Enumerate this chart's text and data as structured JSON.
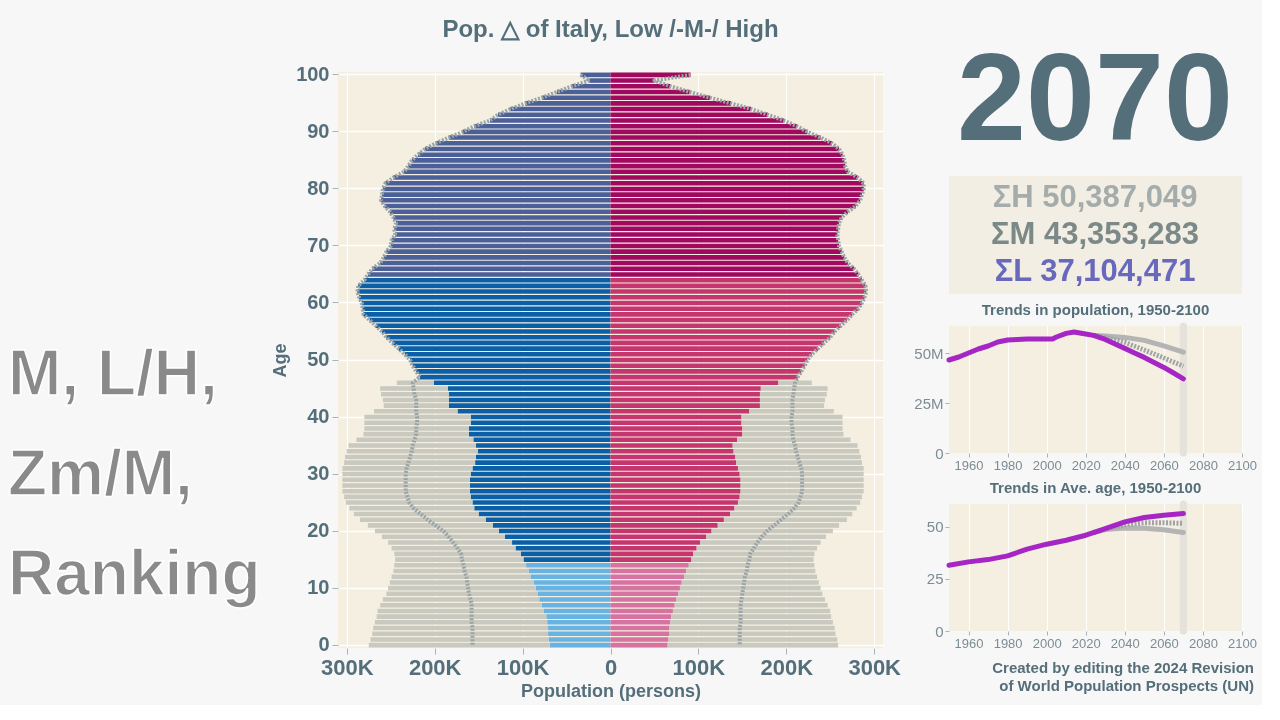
{
  "chart_data": [
    {
      "type": "bar",
      "orientation": "horizontal",
      "stacked": true,
      "title": "Pop. △ of Italy, Low /-M-/ High",
      "xlabel": "Population (persons)",
      "ylabel": "Age",
      "categories": [
        "100",
        null,
        null,
        null,
        null,
        null,
        null,
        null,
        null,
        null,
        "90",
        null,
        null,
        null,
        null,
        null,
        null,
        null,
        null,
        null,
        "80",
        null,
        null,
        null,
        null,
        null,
        null,
        null,
        null,
        null,
        "70",
        null,
        null,
        null,
        null,
        null,
        null,
        null,
        null,
        null,
        "60",
        null,
        null,
        null,
        null,
        null,
        null,
        null,
        null,
        null,
        "50",
        null,
        null,
        null,
        null,
        null,
        null,
        null,
        null,
        null,
        "40",
        null,
        null,
        null,
        null,
        null,
        null,
        null,
        null,
        null,
        "30",
        null,
        null,
        null,
        null,
        null,
        null,
        null,
        null,
        null,
        "20",
        null,
        null,
        null,
        null,
        null,
        null,
        null,
        null,
        null,
        "10",
        null,
        null,
        null,
        null,
        null,
        null,
        null,
        null,
        null,
        "0"
      ],
      "xlim": [
        -310000,
        310000
      ],
      "xticks": [
        {
          "value": -300000,
          "label": "300K"
        },
        {
          "value": -200000,
          "label": "200K"
        },
        {
          "value": -100000,
          "label": "100K"
        },
        0,
        {
          "value": 100000,
          "label": "100K"
        },
        {
          "value": 200000,
          "label": "200K"
        },
        {
          "value": 300000,
          "label": "300K"
        }
      ],
      "grid": true,
      "series": [
        {
          "type": "bar",
          "colors": [
            "#4b5f99",
            "#4b5f99",
            "#4b5f99",
            "#4b5f99",
            "#4b5f99",
            "#4b5f99",
            "#4b5f99",
            "#4b5f99",
            "#4b5f99",
            "#4b5f99",
            "#4b5f99",
            "#4b5f99",
            "#4b5f99",
            "#4b5f99",
            "#4b5f99",
            "#4b5f99",
            "#4b5f99",
            "#4b5f99",
            "#4b5f99",
            "#4b5f99",
            "#4b5f99",
            "#4b5f99",
            "#4b5f99",
            "#4b5f99",
            "#4b5f99",
            "#4b5f99",
            "#4b5f99",
            "#4b5f99",
            "#4b5f99",
            "#4b5f99",
            "#4b5f99",
            "#4b5f99",
            "#4b5f99",
            "#4b5f99",
            "#4b5f99",
            "#4b5f99",
            "#0b5fa7",
            "#0b5fa7",
            "#0b5fa7",
            "#0b5fa7",
            "#0b5fa7",
            "#0b5fa7",
            "#0b5fa7",
            "#0b5fa7",
            "#0b5fa7",
            "#0b5fa7",
            "#0b5fa7",
            "#0b5fa7",
            "#0b5fa7",
            "#0b5fa7",
            "#0b5fa7",
            "#0b5fa7",
            "#0b5fa7",
            "#0b5fa7",
            "#0b5fa7",
            "#0b5fa7",
            "#0b5fa7",
            "#0b5fa7",
            "#0b5fa7",
            "#0b5fa7",
            "#0b5fa7",
            "#0b5fa7",
            "#0b5fa7",
            "#0b5fa7",
            "#0b5fa7",
            "#0b5fa7",
            "#0b5fa7",
            "#0b5fa7",
            "#0b5fa7",
            "#0b5fa7",
            "#0b5fa7",
            "#0b5fa7",
            "#0b5fa7",
            "#0b5fa7",
            "#0b5fa7",
            "#0b5fa7",
            "#0b5fa7",
            "#0b5fa7",
            "#0b5fa7",
            "#0b5fa7",
            "#0b5fa7",
            "#0b5fa7",
            "#0b5fa7",
            "#0b5fa7",
            "#0b5fa7",
            "#0b5fa7",
            "#69b3e3",
            "#69b3e3",
            "#69b3e3",
            "#69b3e3",
            "#69b3e3",
            "#69b3e3",
            "#69b3e3",
            "#69b3e3",
            "#69b3e3",
            "#69b3e3",
            "#69b3e3",
            "#69b3e3",
            "#69b3e3",
            "#69b3e3",
            "#69b3e3"
          ],
          "values": [
            -34000,
            -24000,
            -44000,
            -61000,
            -78000,
            -97000,
            -114000,
            -128000,
            -137000,
            -155000,
            -168000,
            -184000,
            -199000,
            -211000,
            -219000,
            -226000,
            -230000,
            -235000,
            -247000,
            -256000,
            -259000,
            -260000,
            -261000,
            -257000,
            -251000,
            -247000,
            -244000,
            -246000,
            -245000,
            -249000,
            -250000,
            -255000,
            -258000,
            -262000,
            -271000,
            -276000,
            -280000,
            -287000,
            -288000,
            -286000,
            -283000,
            -282000,
            -281000,
            -274000,
            -267000,
            -260000,
            -255000,
            -248000,
            -241000,
            -234000,
            -228000,
            -225000,
            -221000,
            -217000,
            -201000,
            -185000,
            -184000,
            -184000,
            -184000,
            -174000,
            -159000,
            -159000,
            -161000,
            -161000,
            -156000,
            -153000,
            -151000,
            -153000,
            -154000,
            -157000,
            -159000,
            -160000,
            -160000,
            -160000,
            -159000,
            -157000,
            -155000,
            -150000,
            -142000,
            -134000,
            -127000,
            -120000,
            -112000,
            -108000,
            -102000,
            -99000,
            -96000,
            -93000,
            -91000,
            -87000,
            -85000,
            -83000,
            -81000,
            -78000,
            -76000,
            -73000,
            -72000,
            -71000,
            -71000,
            -70000,
            -69000
          ]
        },
        {
          "type": "bar",
          "colors": [
            "#a1085f",
            "#a1085f",
            "#a1085f",
            "#a1085f",
            "#a1085f",
            "#a1085f",
            "#a1085f",
            "#a1085f",
            "#a1085f",
            "#a1085f",
            "#a1085f",
            "#a1085f",
            "#a1085f",
            "#a1085f",
            "#a1085f",
            "#a1085f",
            "#a1085f",
            "#a1085f",
            "#a1085f",
            "#a1085f",
            "#a1085f",
            "#a1085f",
            "#a1085f",
            "#a1085f",
            "#a1085f",
            "#a1085f",
            "#a1085f",
            "#a1085f",
            "#a1085f",
            "#a1085f",
            "#a1085f",
            "#a1085f",
            "#a1085f",
            "#a1085f",
            "#a1085f",
            "#a1085f",
            "#c5366e",
            "#c5366e",
            "#c5366e",
            "#c5366e",
            "#c5366e",
            "#c5366e",
            "#c5366e",
            "#c5366e",
            "#c5366e",
            "#c5366e",
            "#c5366e",
            "#c5366e",
            "#c5366e",
            "#c5366e",
            "#c5366e",
            "#c5366e",
            "#c5366e",
            "#c5366e",
            "#c5366e",
            "#c5366e",
            "#c5366e",
            "#c5366e",
            "#c5366e",
            "#c5366e",
            "#c5366e",
            "#c5366e",
            "#c5366e",
            "#c5366e",
            "#c5366e",
            "#c5366e",
            "#c5366e",
            "#c5366e",
            "#c5366e",
            "#c5366e",
            "#c5366e",
            "#c5366e",
            "#c5366e",
            "#c5366e",
            "#c5366e",
            "#c5366e",
            "#c5366e",
            "#c5366e",
            "#c5366e",
            "#c5366e",
            "#c5366e",
            "#c5366e",
            "#c5366e",
            "#c5366e",
            "#c5366e",
            "#c5366e",
            "#d673a1",
            "#d673a1",
            "#d673a1",
            "#d673a1",
            "#d673a1",
            "#d673a1",
            "#d673a1",
            "#d673a1",
            "#d673a1",
            "#d673a1",
            "#d673a1",
            "#d673a1",
            "#d673a1",
            "#d673a1",
            "#d673a1"
          ],
          "values": [
            91000,
            50000,
            68000,
            90000,
            113000,
            137000,
            160000,
            179000,
            197000,
            212000,
            224000,
            239000,
            252000,
            260000,
            264000,
            266000,
            267000,
            270000,
            281000,
            288000,
            288000,
            286000,
            284000,
            279000,
            270000,
            263000,
            260000,
            259000,
            258000,
            259000,
            260000,
            263000,
            266000,
            270000,
            277000,
            282000,
            286000,
            290000,
            291000,
            289000,
            286000,
            282000,
            275000,
            269000,
            262000,
            255000,
            250000,
            243000,
            236000,
            229000,
            224000,
            221000,
            217000,
            213000,
            191000,
            171000,
            170000,
            170000,
            170000,
            158000,
            149000,
            149000,
            150000,
            150000,
            144000,
            139000,
            140000,
            142000,
            143000,
            145000,
            147000,
            148000,
            148000,
            148000,
            147000,
            145000,
            141000,
            136000,
            129000,
            122000,
            115000,
            109000,
            102000,
            98000,
            94000,
            92000,
            89000,
            86000,
            84000,
            81000,
            79000,
            77000,
            75000,
            73000,
            71000,
            69000,
            68000,
            67000,
            67000,
            66000,
            65000
          ]
        },
        {
          "type": "bar",
          "color": "#c9c9bf",
          "values": [
            null,
            null,
            null,
            null,
            null,
            null,
            null,
            null,
            null,
            null,
            null,
            null,
            null,
            null,
            null,
            null,
            null,
            null,
            null,
            null,
            null,
            null,
            null,
            null,
            null,
            null,
            null,
            null,
            null,
            null,
            null,
            null,
            null,
            null,
            null,
            null,
            null,
            null,
            null,
            null,
            null,
            null,
            null,
            null,
            null,
            null,
            null,
            null,
            null,
            null,
            null,
            null,
            null,
            null,
            -42000,
            -77000,
            -77000,
            -75000,
            -74000,
            -95000,
            -121000,
            -121000,
            -119000,
            -120000,
            -133000,
            -145000,
            -149000,
            -149000,
            -149000,
            -148000,
            -146000,
            -145000,
            -145000,
            -145000,
            -144000,
            -144000,
            -142000,
            -142000,
            -143000,
            -142000,
            -141000,
            -140000,
            -141000,
            -141000,
            -144000,
            -146000,
            -150000,
            -154000,
            -158000,
            -164000,
            -168000,
            -172000,
            -178000,
            -184000,
            -189000,
            -193000,
            -196000,
            -199000,
            -200000,
            -203000,
            -206000
          ]
        },
        {
          "type": "bar",
          "color": "#c9c9bf",
          "values": [
            null,
            null,
            null,
            null,
            null,
            null,
            null,
            null,
            null,
            null,
            null,
            null,
            null,
            null,
            null,
            null,
            null,
            null,
            null,
            null,
            null,
            null,
            null,
            null,
            null,
            null,
            null,
            null,
            null,
            null,
            null,
            null,
            null,
            null,
            null,
            null,
            null,
            null,
            null,
            null,
            null,
            null,
            null,
            null,
            null,
            null,
            null,
            null,
            null,
            null,
            null,
            null,
            null,
            null,
            38000,
            76000,
            76000,
            74000,
            73000,
            96000,
            115000,
            115000,
            114000,
            115000,
            129000,
            142000,
            143000,
            143000,
            143000,
            143000,
            141000,
            140000,
            140000,
            140000,
            139000,
            139000,
            139000,
            139000,
            140000,
            138000,
            138000,
            136000,
            137000,
            137000,
            138000,
            139000,
            143000,
            147000,
            151000,
            156000,
            160000,
            164000,
            169000,
            174000,
            179000,
            182000,
            185000,
            188000,
            189000,
            192000,
            194000
          ]
        },
        {
          "type": "line",
          "color": "#9aa4a7",
          "line_style": "dotted",
          "values": [
            -34000,
            -24000,
            -44000,
            -61000,
            -78000,
            -97000,
            -114000,
            -128000,
            -137000,
            -155000,
            -168000,
            -184000,
            -199000,
            -211000,
            -219000,
            -226000,
            -230000,
            -235000,
            -247000,
            -256000,
            -259000,
            -260000,
            -261000,
            -257000,
            -251000,
            -247000,
            -244000,
            -246000,
            -245000,
            -249000,
            -250000,
            -255000,
            -258000,
            -262000,
            -271000,
            -276000,
            -280000,
            -287000,
            -288000,
            -286000,
            -283000,
            -282000,
            -281000,
            -274000,
            -267000,
            -260000,
            -255000,
            -248000,
            -241000,
            -234000,
            -228000,
            -225000,
            -221000,
            -217000,
            -225000,
            -224000,
            -223000,
            -221000,
            -221000,
            -221000,
            -220000,
            -220000,
            -221000,
            -221000,
            -223000,
            -225000,
            -226000,
            -228000,
            -230000,
            -232000,
            -233000,
            -233000,
            -233000,
            -233000,
            -231000,
            -229000,
            -224000,
            -216000,
            -208000,
            -199000,
            -190000,
            -184000,
            -179000,
            -174000,
            -170000,
            -169000,
            -167000,
            -166000,
            -164000,
            -163000,
            -162000,
            -161000,
            -159000,
            -158000,
            -158000,
            -158000,
            -158000,
            -157000,
            -157000,
            -157000,
            -157000
          ]
        },
        {
          "type": "line",
          "color": "#9aa4a7",
          "line_style": "dotted",
          "values": [
            91000,
            50000,
            68000,
            90000,
            113000,
            137000,
            160000,
            179000,
            197000,
            212000,
            224000,
            239000,
            252000,
            260000,
            264000,
            266000,
            267000,
            270000,
            281000,
            288000,
            288000,
            286000,
            284000,
            279000,
            270000,
            263000,
            260000,
            259000,
            258000,
            259000,
            260000,
            263000,
            266000,
            270000,
            277000,
            282000,
            286000,
            290000,
            291000,
            289000,
            286000,
            282000,
            275000,
            269000,
            262000,
            255000,
            250000,
            243000,
            236000,
            229000,
            224000,
            221000,
            217000,
            213000,
            210000,
            209000,
            208000,
            207000,
            207000,
            207000,
            206000,
            206000,
            207000,
            207000,
            208000,
            210000,
            211000,
            213000,
            215000,
            217000,
            218000,
            218000,
            218000,
            218000,
            216000,
            214000,
            209000,
            202000,
            194000,
            186000,
            178000,
            172000,
            167000,
            163000,
            159000,
            158000,
            156000,
            155000,
            153000,
            152000,
            151000,
            150000,
            149000,
            148000,
            148000,
            148000,
            148000,
            147000,
            147000,
            147000,
            147000
          ]
        }
      ],
      "annotations": [
        "M, L/H,\nZm/M,\nRanking"
      ]
    },
    {
      "type": "other",
      "annotations": [
        "2070",
        "ΣH 50,387,049",
        "ΣM 43,353,283",
        "ΣL 37,104,471"
      ]
    },
    {
      "type": "line",
      "title": "Trends in population, 1950-2100",
      "xlim": [
        1950,
        2100
      ],
      "ylim": [
        0,
        63500000
      ],
      "xticks": [
        1960,
        1980,
        2000,
        2020,
        2040,
        2060,
        2080,
        2100
      ],
      "yticks": [
        0,
        {
          "value": 25000000,
          "label": "25M"
        },
        {
          "value": 50000000,
          "label": "50M"
        }
      ],
      "grid": "x",
      "ref_lines": [
        {
          "axis": "x",
          "value": 2070,
          "color": "#e4e2da"
        }
      ],
      "series": [
        {
          "color": "#b4b4b4",
          "x": [
            2024,
            2030,
            2040,
            2050,
            2060,
            2070
          ],
          "values": [
            58800000,
            58500000,
            57800000,
            56300000,
            53600000,
            50400000
          ]
        },
        {
          "color": "#9fa3a6",
          "line_style": "dotted",
          "x": [
            2024,
            2030,
            2040,
            2050,
            2060,
            2070
          ],
          "values": [
            58800000,
            57800000,
            55300000,
            51500000,
            47500000,
            43400000
          ]
        },
        {
          "color": "#a526c4",
          "x": [
            1950,
            1955,
            1960,
            1965,
            1970,
            1975,
            1980,
            1985,
            1990,
            1995,
            2000,
            2003,
            2005,
            2010,
            2014,
            2020,
            2024,
            2030,
            2035,
            2040,
            2045,
            2050,
            2055,
            2060,
            2065,
            2070
          ],
          "values": [
            46500000,
            48000000,
            50000000,
            52000000,
            53500000,
            55500000,
            56500000,
            56800000,
            57000000,
            57000000,
            57000000,
            57000000,
            58000000,
            59800000,
            60500000,
            59500000,
            58800000,
            56800000,
            54500000,
            52300000,
            50000000,
            47800000,
            45300000,
            42800000,
            40000000,
            37100000
          ]
        }
      ]
    },
    {
      "type": "line",
      "title": "Trends in Ave. age, 1950-2100",
      "xlim": [
        1950,
        2100
      ],
      "ylim": [
        0,
        61
      ],
      "xticks": [
        1960,
        1980,
        2000,
        2020,
        2040,
        2060,
        2080,
        2100
      ],
      "yticks": [
        0,
        25,
        50
      ],
      "grid": "x",
      "ref_lines": [
        {
          "axis": "x",
          "value": 2070,
          "color": "#e4e2da"
        }
      ],
      "series": [
        {
          "color": "#b4b4b4",
          "x": [
            2024,
            2030,
            2040,
            2050,
            2060,
            2070
          ],
          "values": [
            47.3,
            48.7,
            49.5,
            49.3,
            48.6,
            47.3
          ]
        },
        {
          "color": "#9fa3a6",
          "line_style": "dotted",
          "x": [
            2024,
            2030,
            2040,
            2050,
            2060,
            2070
          ],
          "values": [
            47.3,
            48.9,
            51,
            52,
            52,
            51.7
          ]
        },
        {
          "color": "#a526c4",
          "x": [
            1950,
            1960,
            1970,
            1980,
            1990,
            2000,
            2010,
            2020,
            2024,
            2030,
            2040,
            2050,
            2060,
            2070
          ],
          "values": [
            31.6,
            33.2,
            34.3,
            36.1,
            39.3,
            41.7,
            43.6,
            46,
            47.3,
            49.2,
            52.4,
            54.5,
            55.6,
            56.4
          ]
        }
      ],
      "annotations": [
        "Created by editing the 2024 Revision of World Population Prospects (UN)"
      ]
    }
  ]
}
